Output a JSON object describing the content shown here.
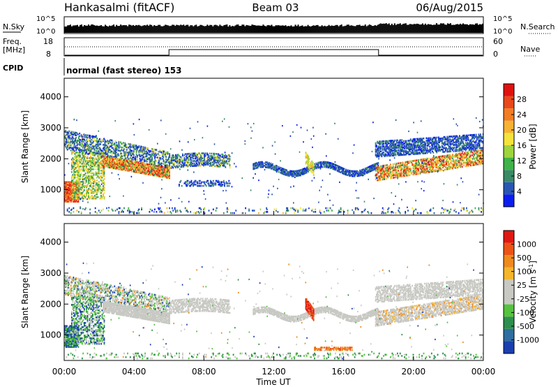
{
  "header": {
    "station": "Hankasalmi (fitACF)",
    "beam": "Beam 03",
    "date": "06/Aug/2015"
  },
  "top_panels": {
    "nsky_label": "N.Sky",
    "nsearch_label": "N.Search",
    "nsky_ticks": [
      "10^5",
      "10^0"
    ],
    "nsearch_ticks": [
      "10^5",
      "10^0"
    ],
    "freq_label_1": "Freq.",
    "freq_label_2": "[MHz]",
    "freq_ticks": [
      "18",
      "8"
    ],
    "nave_label": "Nave",
    "nave_ticks": [
      "60",
      "0"
    ],
    "cpid_label": "CPID",
    "cpid_text": "normal (fast stereo) 153"
  },
  "chart_data": [
    {
      "type": "heatmap",
      "name": "power",
      "xlabel": "Time UT",
      "ylabel": "Slant Range [km]",
      "y_ticks": [
        1000,
        2000,
        3000,
        4000
      ],
      "ylim": [
        180,
        4600
      ],
      "xlim_hours": [
        0,
        24
      ],
      "colorbar_label": "Power [dB]",
      "colorbar_ticks": [
        "28",
        "24",
        "20",
        "16",
        "12",
        "8",
        "4"
      ],
      "colorbar_colors": [
        "#0b1ef0",
        "#2a57b4",
        "#3a8a67",
        "#3fb24a",
        "#9ed43c",
        "#f3e33b",
        "#f7b233",
        "#f27d24",
        "#e9481b",
        "#e0120f"
      ]
    },
    {
      "type": "heatmap",
      "name": "velocity",
      "xlabel": "Time UT",
      "ylabel": "Slant Range [km]",
      "y_ticks": [
        1000,
        2000,
        3000,
        4000
      ],
      "ylim": [
        180,
        4600
      ],
      "xlim_hours": [
        0,
        24
      ],
      "colorbar_label": "Velocity [m s^-1]",
      "colorbar_ticks": [
        "1000",
        "500",
        "100",
        "25",
        "-25",
        "-100",
        "-500",
        "-1000"
      ],
      "colorbar_colors": [
        "#1b3fb0",
        "#2f6ea0",
        "#2f8f4e",
        "#56c33e",
        "#c9c9c4",
        "#c9c9c4",
        "#f4b62b",
        "#f08a1e",
        "#eb5416",
        "#e01812"
      ]
    }
  ],
  "x_ticks": [
    "00:00",
    "04:00",
    "08:00",
    "12:00",
    "16:00",
    "20:00",
    "00:00"
  ],
  "x_label": "Time UT"
}
